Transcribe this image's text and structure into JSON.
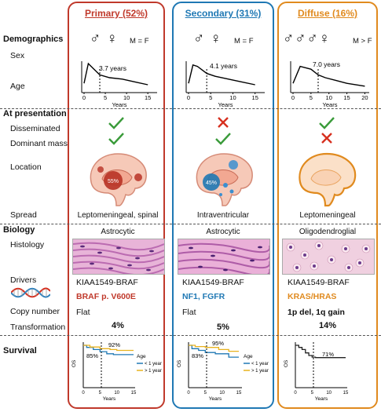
{
  "colors": {
    "primary": "#c0392b",
    "secondary": "#1f78b4",
    "diffuse": "#e08a1e",
    "dna_red": "#d7301f",
    "dna_blue": "#3182bd"
  },
  "rows": {
    "demographics": "Demographics",
    "sex": "Sex",
    "age": "Age",
    "at_presentation": "At presentation",
    "disseminated": "Disseminated",
    "dominant_mass": "Dominant mass",
    "location": "Location",
    "spread": "Spread",
    "biology": "Biology",
    "histology": "Histology",
    "drivers": "Drivers",
    "copy_number": "Copy number",
    "transformation": "Transformation",
    "survival": "Survival"
  },
  "columns": [
    {
      "key": "primary",
      "title": "Primary (52%)",
      "sex_symbols": "♂ ♀",
      "sex_ratio": "M = F",
      "age_median": "3.7 years",
      "disseminated": "yes",
      "dominant_mass": "yes",
      "location_pct": "55%",
      "spread": "Leptomeningeal, spinal",
      "histology": "Astrocytic",
      "driver": "KIAA1549-BRAF",
      "driver_extra": "BRAF p. V600E",
      "copy_number": "Flat",
      "transformation": "4%",
      "survival_annotations": [
        "92%",
        "85%"
      ]
    },
    {
      "key": "secondary",
      "title": "Secondary (31%)",
      "sex_symbols": "♂ ♀",
      "sex_ratio": "M = F",
      "age_median": "4.1 years",
      "disseminated": "no",
      "dominant_mass": "yes",
      "location_pct": "45%",
      "spread": "Intraventricular",
      "histology": "Astrocytic",
      "driver": "KIAA1549-BRAF",
      "driver_extra": "NF1, FGFR",
      "copy_number": "Flat",
      "transformation": "5%",
      "survival_annotations": [
        "95%",
        "83%"
      ]
    },
    {
      "key": "diffuse",
      "title": "Diffuse (16%)",
      "sex_symbols": "♂♂♂♀",
      "sex_ratio": "M > F",
      "age_median": "7.0 years",
      "disseminated": "yes",
      "dominant_mass": "no",
      "location_pct": "",
      "spread": "Leptomeningeal",
      "histology": "Oligodendroglial",
      "driver": "KIAA1549-BRAF",
      "driver_extra": "KRAS/HRAS",
      "copy_number": "1p del, 1q gain",
      "transformation": "14%",
      "survival_annotations": [
        "71%"
      ]
    }
  ],
  "age_axis": {
    "ticks": [
      "0",
      "5",
      "10",
      "15"
    ],
    "ticks_diffuse": [
      "0",
      "5",
      "10",
      "15",
      "20"
    ],
    "label": "Years"
  },
  "survival_axis": {
    "ylabel": "OS",
    "xlabel": "Years",
    "xticks": [
      "0",
      "5",
      "10",
      "15"
    ],
    "yticks": [
      "0.0",
      "0.5",
      "1.0"
    ],
    "legend_title": "Age",
    "legend_items": [
      "< 1 year",
      "> 1 year"
    ]
  },
  "chart_data": [
    {
      "type": "line",
      "panel": "primary-age",
      "x": [
        0,
        1,
        2,
        3.7,
        6,
        9,
        12,
        15
      ],
      "y": [
        0.3,
        1.0,
        0.85,
        0.6,
        0.5,
        0.45,
        0.35,
        0.25
      ],
      "median_marker": 3.7
    },
    {
      "type": "line",
      "panel": "secondary-age",
      "x": [
        0,
        1,
        2,
        4.1,
        6,
        9,
        12,
        15
      ],
      "y": [
        0.3,
        0.95,
        0.9,
        0.65,
        0.55,
        0.45,
        0.35,
        0.25
      ],
      "median_marker": 4.1
    },
    {
      "type": "line",
      "panel": "diffuse-age",
      "x": [
        0,
        2,
        5,
        7,
        9,
        12,
        15,
        20
      ],
      "y": [
        0.3,
        0.9,
        0.8,
        0.6,
        0.5,
        0.4,
        0.3,
        0.2
      ],
      "median_marker": 7.0
    },
    {
      "type": "line",
      "panel": "primary-survival",
      "series": [
        {
          "name": "< 1 year",
          "x": [
            0,
            1,
            3,
            5,
            7,
            9,
            15
          ],
          "y": [
            1.0,
            0.95,
            0.9,
            0.85,
            0.8,
            0.78,
            0.78
          ],
          "color": "#1f78b4"
        },
        {
          "name": "> 1 year",
          "x": [
            0,
            2,
            5,
            8,
            10,
            15
          ],
          "y": [
            1.0,
            0.96,
            0.92,
            0.9,
            0.88,
            0.88
          ],
          "color": "#e8b21e"
        }
      ]
    },
    {
      "type": "line",
      "panel": "secondary-survival",
      "series": [
        {
          "name": "< 1 year",
          "x": [
            0,
            1,
            3,
            5,
            8,
            12,
            15
          ],
          "y": [
            1.0,
            0.92,
            0.88,
            0.83,
            0.8,
            0.72,
            0.72
          ],
          "color": "#1f78b4"
        },
        {
          "name": "> 1 year",
          "x": [
            0,
            2,
            5,
            9,
            12,
            15
          ],
          "y": [
            1.0,
            0.97,
            0.95,
            0.9,
            0.86,
            0.86
          ],
          "color": "#e8b21e"
        }
      ]
    },
    {
      "type": "line",
      "panel": "diffuse-survival",
      "series": [
        {
          "x": [
            0,
            1,
            2,
            3,
            4,
            5,
            6,
            10,
            15
          ],
          "y": [
            1.0,
            0.95,
            0.9,
            0.82,
            0.76,
            0.72,
            0.71,
            0.71,
            0.71
          ],
          "color": "#222222"
        }
      ]
    }
  ]
}
